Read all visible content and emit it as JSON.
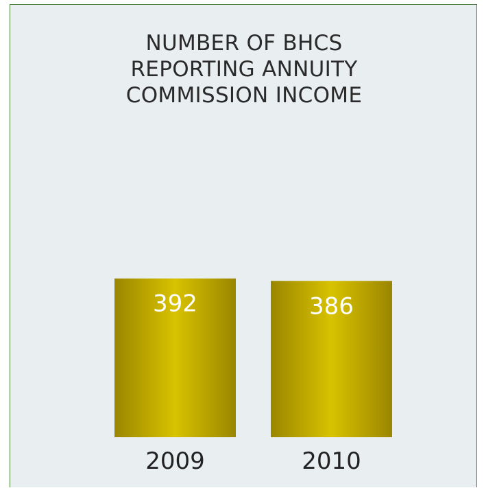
{
  "chart_data": {
    "type": "bar",
    "title_lines": [
      "NUMBER OF BHCS",
      "REPORTING ANNUITY",
      "COMMISSION INCOME"
    ],
    "categories": [
      "2009",
      "2010"
    ],
    "values": [
      392,
      386
    ],
    "data_labels": [
      "392",
      "386"
    ],
    "xlabel": "",
    "ylabel": "",
    "grid": false,
    "colors": {
      "bar_edge": "#9a8600",
      "bar_center": "#d8c200",
      "background": "#e9eef0",
      "border": "#4a7a3a"
    }
  }
}
